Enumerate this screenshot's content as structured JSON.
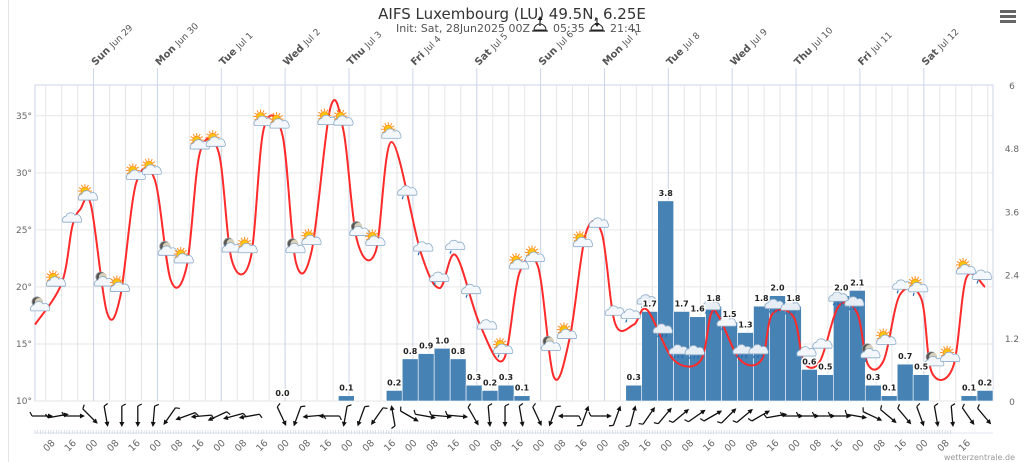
{
  "title": "AIFS Luxembourg (LU) 49.5N, 6.25E",
  "subtitle": {
    "init": "Init: Sat, 28Jun2025 00Z",
    "sunrise": "05:35",
    "sunset": "21:41"
  },
  "credit": "wetterzentrale.de",
  "icons": {
    "menu": "hamburger-menu-icon",
    "sunrise": "sunrise-icon",
    "sunset": "sunset-icon"
  },
  "colors": {
    "temperature": "#ff2a2a",
    "precipitation": "#4682b4",
    "grid": "#e6e6e6",
    "axis_line": "#ccd6eb"
  },
  "chart_data": {
    "type": "meteogram",
    "x_range": [
      "2025-06-28T02:00",
      "2025-07-13T02:00"
    ],
    "day_labels": [
      {
        "t": "2025-06-29T00:00",
        "day": "Sun",
        "date": "Jun 29"
      },
      {
        "t": "2025-06-30T00:00",
        "day": "Mon",
        "date": "Jun 30"
      },
      {
        "t": "2025-07-01T00:00",
        "day": "Tue",
        "date": "Jul 1"
      },
      {
        "t": "2025-07-02T00:00",
        "day": "Wed",
        "date": "Jul 2"
      },
      {
        "t": "2025-07-03T00:00",
        "day": "Thu",
        "date": "Jul 3"
      },
      {
        "t": "2025-07-04T00:00",
        "day": "Fri",
        "date": "Jul 4"
      },
      {
        "t": "2025-07-05T00:00",
        "day": "Sat",
        "date": "Jul 5"
      },
      {
        "t": "2025-07-06T00:00",
        "day": "Sun",
        "date": "Jul 6"
      },
      {
        "t": "2025-07-07T00:00",
        "day": "Mon",
        "date": "Jul 7"
      },
      {
        "t": "2025-07-08T00:00",
        "day": "Tue",
        "date": "Jul 8"
      },
      {
        "t": "2025-07-09T00:00",
        "day": "Wed",
        "date": "Jul 9"
      },
      {
        "t": "2025-07-10T00:00",
        "day": "Thu",
        "date": "Jul 10"
      },
      {
        "t": "2025-07-11T00:00",
        "day": "Fri",
        "date": "Jul 11"
      },
      {
        "t": "2025-07-12T00:00",
        "day": "Sat",
        "date": "Jul 12"
      }
    ],
    "hour_labels": [
      "08",
      "16",
      "00"
    ],
    "hour_label_start": "2025-06-28T08:00",
    "hour_label_step_hours": 8,
    "temperature_axis": {
      "min": 10,
      "max": 37.7,
      "ticks": [
        "10°",
        "15°",
        "20°",
        "25°",
        "30°",
        "35°"
      ],
      "tick_values": [
        10,
        15,
        20,
        25,
        30,
        35
      ]
    },
    "precip_axis": {
      "min": 0,
      "max": 6,
      "ticks": [
        "0",
        "1.2",
        "2.4",
        "3.6",
        "4.8",
        "6"
      ],
      "tick_values": [
        0,
        1.2,
        2.4,
        3.6,
        4.8,
        6
      ]
    },
    "grid": true,
    "temperature": [
      [
        "2025-06-28T02:00",
        16.7
      ],
      [
        "2025-06-28T12:00",
        20.3
      ],
      [
        "2025-06-28T16:00",
        25.3
      ],
      [
        "2025-06-28T19:00",
        26.8
      ],
      [
        "2025-06-28T23:00",
        27.2
      ],
      [
        "2025-06-29T05:00",
        17.8
      ],
      [
        "2025-06-29T10:00",
        19.1
      ],
      [
        "2025-06-29T16:00",
        29.1
      ],
      [
        "2025-06-29T23:00",
        29.4
      ],
      [
        "2025-06-30T05:00",
        20.6
      ],
      [
        "2025-06-30T11:00",
        21.8
      ],
      [
        "2025-06-30T16:00",
        31.8
      ],
      [
        "2025-06-30T23:00",
        31.8
      ],
      [
        "2025-07-01T04:00",
        22.3
      ],
      [
        "2025-07-01T11:00",
        22.5
      ],
      [
        "2025-07-01T16:00",
        33.9
      ],
      [
        "2025-07-01T23:00",
        33.3
      ],
      [
        "2025-07-02T04:00",
        22.2
      ],
      [
        "2025-07-02T10:00",
        23.2
      ],
      [
        "2025-07-02T17:00",
        35.7
      ],
      [
        "2025-07-02T22:00",
        33.6
      ],
      [
        "2025-07-03T03:00",
        24.1
      ],
      [
        "2025-07-03T10:00",
        23.1
      ],
      [
        "2025-07-03T16:00",
        32.7
      ],
      [
        "2025-07-04T03:00",
        23.0
      ],
      [
        "2025-07-04T10:00",
        19.9
      ],
      [
        "2025-07-04T16:00",
        22.8
      ],
      [
        "2025-07-05T01:00",
        16.8
      ],
      [
        "2025-07-05T10:00",
        13.6
      ],
      [
        "2025-07-05T16:00",
        21.2
      ],
      [
        "2025-07-05T23:00",
        21.8
      ],
      [
        "2025-07-06T05:00",
        12.1
      ],
      [
        "2025-07-06T11:00",
        15.6
      ],
      [
        "2025-07-06T17:00",
        24.7
      ],
      [
        "2025-07-06T23:00",
        24.7
      ],
      [
        "2025-07-07T04:00",
        16.8
      ],
      [
        "2025-07-07T11:00",
        16.7
      ],
      [
        "2025-07-07T16:00",
        18.0
      ],
      [
        "2025-07-08T02:00",
        13.6
      ],
      [
        "2025-07-08T12:00",
        13.5
      ],
      [
        "2025-07-08T16:00",
        17.6
      ],
      [
        "2025-07-08T19:00",
        17.4
      ],
      [
        "2025-07-09T03:00",
        13.6
      ],
      [
        "2025-07-09T11:00",
        13.6
      ],
      [
        "2025-07-09T15:00",
        17.6
      ],
      [
        "2025-07-09T23:00",
        17.4
      ],
      [
        "2025-07-10T03:00",
        13.4
      ],
      [
        "2025-07-10T09:00",
        13.5
      ],
      [
        "2025-07-10T16:00",
        18.3
      ],
      [
        "2025-07-10T23:00",
        17.7
      ],
      [
        "2025-07-11T03:00",
        13.2
      ],
      [
        "2025-07-11T09:00",
        13.6
      ],
      [
        "2025-07-11T15:00",
        19.3
      ],
      [
        "2025-07-11T23:00",
        19.0
      ],
      [
        "2025-07-12T03:00",
        12.5
      ],
      [
        "2025-07-12T11:00",
        13.0
      ],
      [
        "2025-07-12T16:00",
        20.8
      ],
      [
        "2025-07-12T23:00",
        20.0
      ]
    ],
    "precipitation": {
      "start": "2025-06-28T02:00",
      "step_hours": 6,
      "unit": "mm",
      "values": [
        null,
        null,
        null,
        null,
        null,
        null,
        null,
        null,
        null,
        null,
        null,
        null,
        null,
        null,
        null,
        0.0,
        null,
        null,
        null,
        0.1,
        null,
        null,
        0.2,
        0.8,
        0.9,
        1.0,
        0.8,
        0.3,
        0.2,
        0.3,
        0.1,
        null,
        null,
        null,
        null,
        null,
        null,
        0.3,
        1.7,
        3.8,
        1.7,
        1.6,
        1.8,
        1.5,
        1.3,
        1.8,
        2.0,
        1.8,
        0.6,
        0.5,
        2.0,
        2.1,
        0.3,
        0.1,
        0.7,
        0.5,
        null,
        null,
        0.1,
        0.2
      ]
    },
    "weather_symbols": [
      "moon-cloud",
      "sun-cloud",
      "cloud",
      "sun-cloud",
      "moon-cloud",
      "sun-cloud",
      "sun-cloud",
      "sun-cloud",
      "moon-cloud",
      "sun-cloud",
      "sun-cloud",
      "sun-cloud",
      "moon-cloud",
      "sun-cloud",
      "sun-cloud",
      "sun-cloud",
      "moon-cloud",
      "sun",
      "sun-cloud",
      "sun-cloud",
      "moon-cloud",
      "sun-cloud",
      "sun-cloud",
      "rain-cloud",
      "rain-cloud",
      "rain-cloud",
      "rain-cloud",
      "rain-cloud",
      "cloud",
      "sun-rain-cloud",
      "sun-cloud",
      "sun-cloud",
      "moon-cloud",
      "sun",
      "sun-cloud",
      "cloud",
      "cloud",
      "rain-cloud",
      "heavy-rain-cloud",
      "heavy-rain-cloud",
      "thunder-rain-cloud",
      "thunder-rain-cloud",
      "heavy-rain-cloud",
      "rain-cloud",
      "thunder-rain-cloud",
      "thunder-rain-cloud",
      "heavy-rain-cloud",
      "heavy-rain-cloud",
      "rain-cloud",
      "cloud",
      "heavy-rain-cloud",
      "heavy-rain-cloud",
      "moon-rain-cloud",
      "sun-cloud",
      "rain-cloud",
      "sun-rain-cloud",
      "moon-cloud",
      "sun-cloud",
      "sun-cloud",
      "rain-cloud"
    ],
    "wind_arrow_bearing_deg": [
      90,
      80,
      90,
      135,
      170,
      180,
      180,
      185,
      215,
      250,
      265,
      245,
      255,
      260,
      null,
      155,
      200,
      265,
      270,
      190,
      200,
      215,
      350,
      120,
      100,
      95,
      95,
      150,
      175,
      180,
      170,
      155,
      200,
      270,
      20,
      90,
      20,
      15,
      35,
      40,
      50,
      55,
      60,
      45,
      50,
      60,
      80,
      90,
      90,
      90,
      90,
      100,
      115,
      130,
      140,
      160,
      170,
      175,
      145,
      140
    ]
  }
}
